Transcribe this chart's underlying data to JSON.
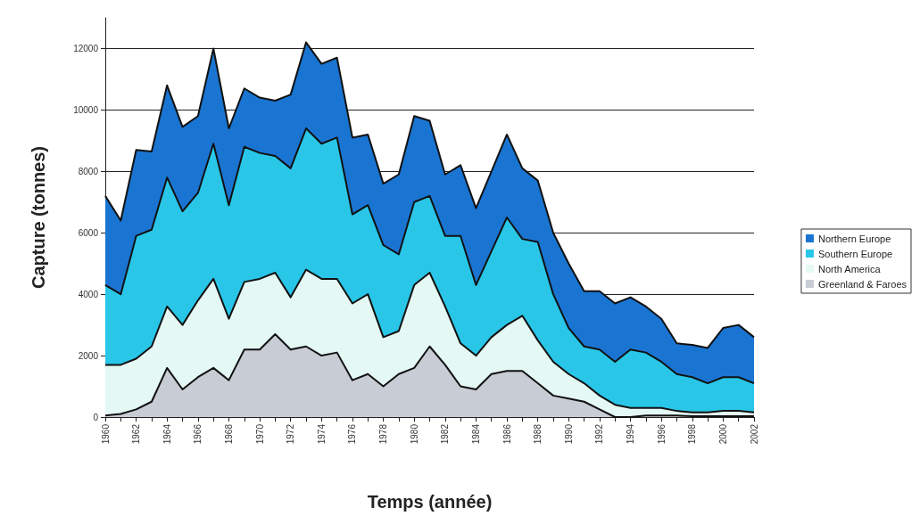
{
  "chart_data": {
    "type": "area",
    "stacked": true,
    "xlabel": "Temps (année)",
    "ylabel": "Capture (tonnes)",
    "categories": [
      "1960",
      null,
      "1962",
      null,
      "1964",
      null,
      "1966",
      null,
      "1968",
      null,
      "1970",
      null,
      "1972",
      null,
      "1974",
      null,
      "1976",
      null,
      "1978",
      null,
      "1980",
      null,
      "1982",
      null,
      "1984",
      null,
      "1986",
      null,
      "1988",
      null,
      "1990",
      null,
      "1992",
      null,
      "1994",
      null,
      "1996",
      null,
      "1998",
      null,
      "2000",
      null,
      "2002"
    ],
    "series": [
      {
        "name": "Greenland & Faroes",
        "color": "#c8ccd4",
        "values": [
          50,
          100,
          250,
          500,
          1600,
          900,
          1300,
          1600,
          1200,
          2200,
          2200,
          2700,
          2200,
          2300,
          2000,
          2100,
          1200,
          1400,
          1000,
          1400,
          1600,
          2300,
          1700,
          1000,
          900,
          1400,
          1500,
          1500,
          1100,
          700,
          600,
          500,
          250,
          0,
          0,
          50,
          50,
          50,
          30,
          30,
          30,
          30,
          30
        ]
      },
      {
        "name": "North America",
        "color": "#e4f8f4",
        "values": [
          1650,
          1600,
          1650,
          1800,
          2000,
          2100,
          2500,
          2900,
          2000,
          2200,
          2300,
          2000,
          1700,
          2500,
          2500,
          2400,
          2500,
          2600,
          1600,
          1400,
          2700,
          2400,
          1900,
          1400,
          1100,
          1200,
          1500,
          1800,
          1400,
          1100,
          800,
          600,
          450,
          400,
          300,
          250,
          250,
          150,
          120,
          120,
          170,
          170,
          120
        ]
      },
      {
        "name": "Southern Europe",
        "color": "#29c6e8",
        "values": [
          2600,
          2300,
          4000,
          3800,
          4200,
          3700,
          3500,
          4400,
          3700,
          4400,
          4100,
          3800,
          4200,
          4600,
          4400,
          4600,
          2900,
          2900,
          3000,
          2500,
          2700,
          2500,
          2300,
          3500,
          2300,
          2800,
          3500,
          2500,
          3200,
          2200,
          1500,
          1200,
          1500,
          1400,
          1900,
          1800,
          1500,
          1200,
          1150,
          950,
          1100,
          1100,
          950
        ]
      },
      {
        "name": "Northern Europe",
        "color": "#1a75d2",
        "values": [
          2900,
          2400,
          2800,
          2550,
          3000,
          2750,
          2500,
          3100,
          2500,
          1900,
          1800,
          1800,
          2400,
          2800,
          2600,
          2600,
          2500,
          2300,
          2000,
          2600,
          2800,
          2450,
          2000,
          2300,
          2500,
          2600,
          2700,
          2300,
          2000,
          2000,
          2100,
          1800,
          1900,
          1900,
          1700,
          1500,
          1400,
          1000,
          1050,
          1150,
          1600,
          1700,
          1500
        ]
      }
    ],
    "ylim": [
      0,
      13000
    ],
    "yticks": [
      0,
      2000,
      4000,
      6000,
      8000,
      10000,
      12000
    ],
    "grid": "y",
    "legend": "right",
    "marker": "none",
    "line_style": "solid"
  }
}
